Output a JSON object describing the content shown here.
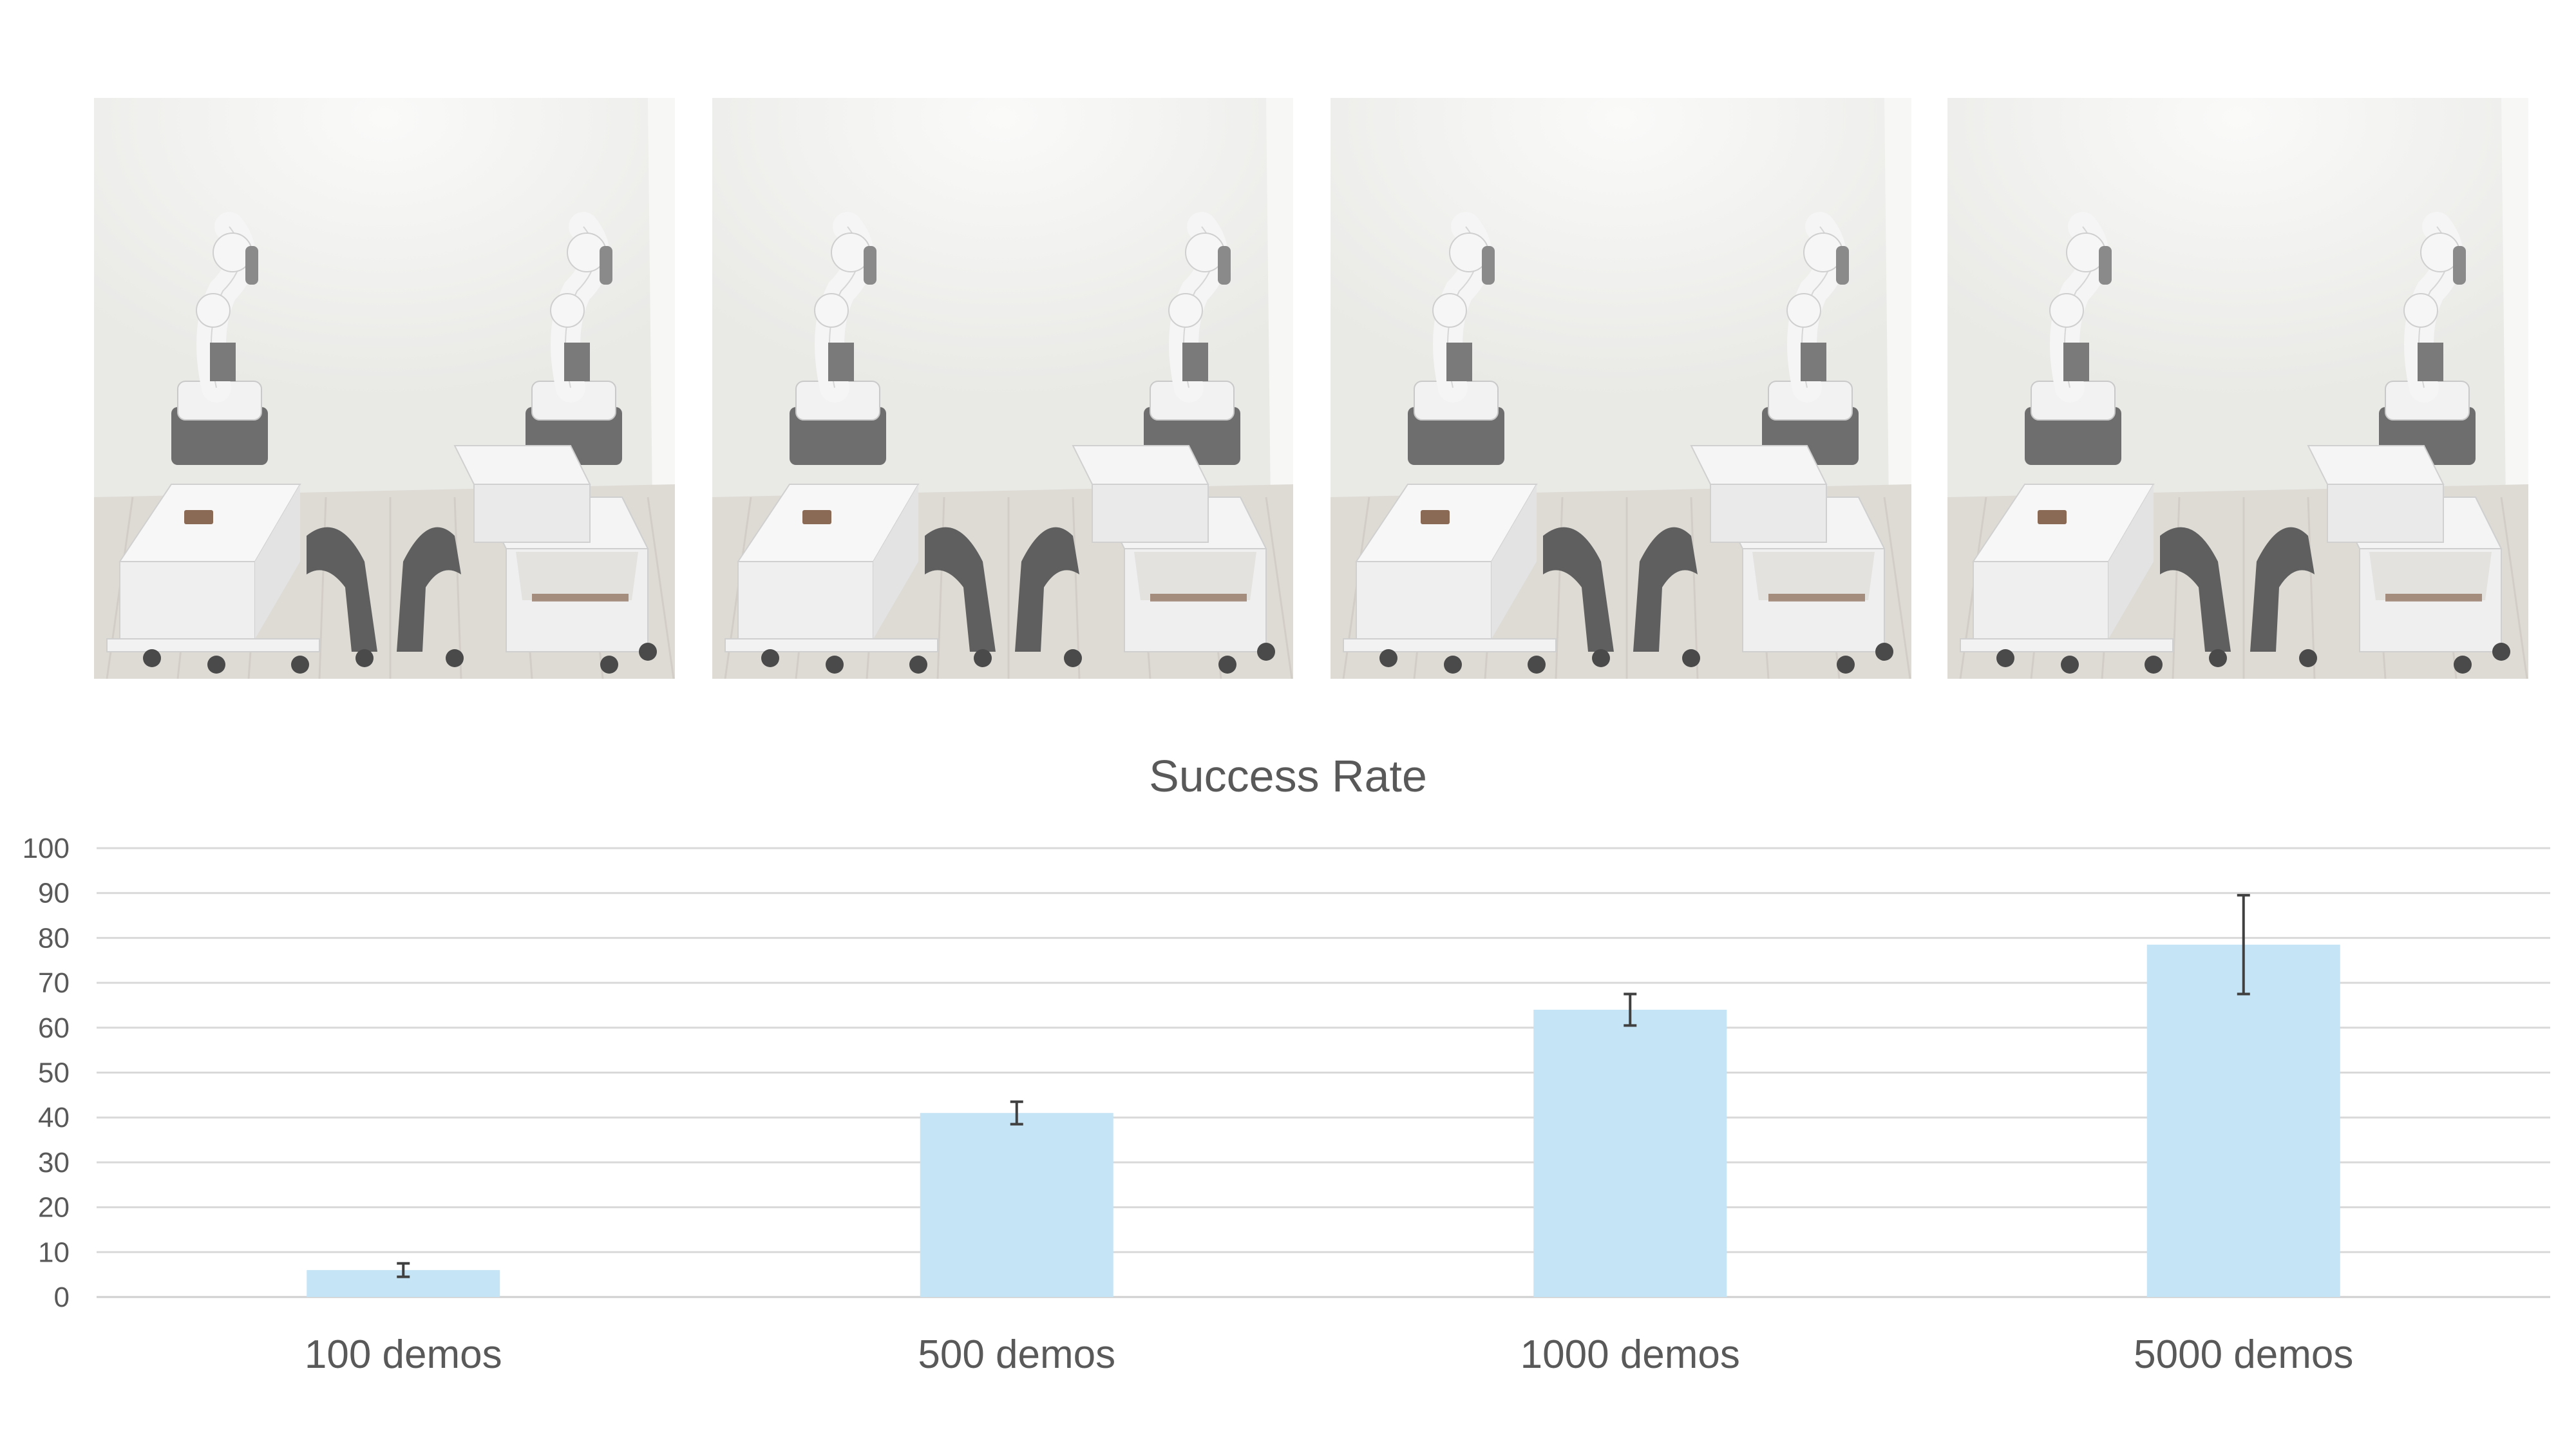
{
  "scenes": [
    {
      "name": "robot-scene"
    },
    {
      "name": "robot-scene"
    },
    {
      "name": "robot-scene"
    },
    {
      "name": "robot-scene"
    }
  ],
  "chart_data": {
    "type": "bar",
    "title": "Success Rate",
    "xlabel": "",
    "ylabel": "",
    "categories": [
      "100 demos",
      "500 demos",
      "1000 demos",
      "5000 demos"
    ],
    "values": [
      6,
      41,
      64,
      78.5
    ],
    "error_low": [
      1.5,
      2.5,
      3.5,
      11
    ],
    "error_high": [
      1.5,
      2.5,
      3.5,
      11
    ],
    "ylim": [
      0,
      100
    ],
    "yticks": [
      0,
      10,
      20,
      30,
      40,
      50,
      60,
      70,
      80,
      90,
      100
    ],
    "grid": true,
    "legend": "none",
    "bar_color": "#c5e4f5",
    "grid_color": "#d9d9d9",
    "text_color": "#595959"
  }
}
